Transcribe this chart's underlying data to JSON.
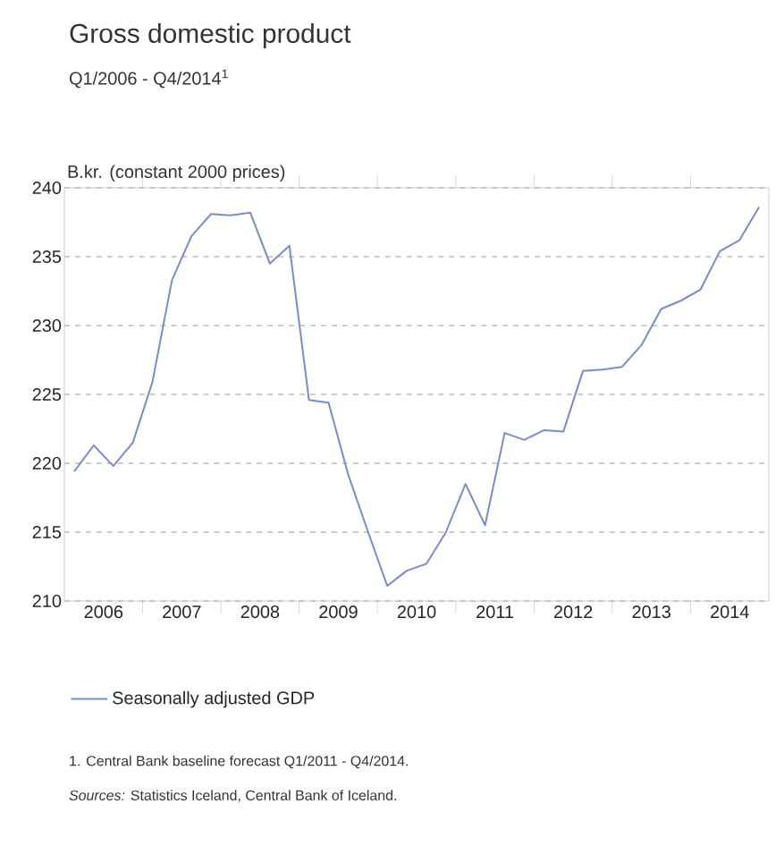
{
  "chart_data": {
    "type": "line",
    "title": "Gross domestic product",
    "subtitle": "Q1/2006 - Q4/2014$^{1}$",
    "ylabel": "B.kr. (constant 2000 prices)",
    "x": [
      2006.125,
      2006.375,
      2006.625,
      2006.875,
      2007.125,
      2007.375,
      2007.625,
      2007.875,
      2008.125,
      2008.375,
      2008.625,
      2008.875,
      2009.125,
      2009.375,
      2009.625,
      2009.875,
      2010.125,
      2010.375,
      2010.625,
      2010.875,
      2011.125,
      2011.375,
      2011.625,
      2011.875,
      2012.125,
      2012.375,
      2012.625,
      2012.875,
      2013.125,
      2013.375,
      2013.625,
      2013.875,
      2014.125,
      2014.375,
      2014.625,
      2014.875
    ],
    "series": [
      {
        "name": "Seasonally adjusted GDP",
        "color": "#7b8cc4",
        "values": [
          219.4,
          221.3,
          219.8,
          221.5,
          225.9,
          233.3,
          236.5,
          238.1,
          238.0,
          238.2,
          234.5,
          235.8,
          224.6,
          224.4,
          219.2,
          215.1,
          211.1,
          212.2,
          212.7,
          215.0,
          218.5,
          215.5,
          222.2,
          221.7,
          222.4,
          222.3,
          226.7,
          226.8,
          227.0,
          228.6,
          231.2,
          231.8,
          232.6,
          235.4,
          236.2,
          238.6
        ]
      }
    ],
    "xlim": [
      2006,
      2015
    ],
    "xticks": [
      {
        "value": 2006.5,
        "label": "2006"
      },
      {
        "value": 2007,
        "label": null
      },
      {
        "value": 2007.5,
        "label": "2007"
      },
      {
        "value": 2008,
        "label": null
      },
      {
        "value": 2008.5,
        "label": "2008"
      },
      {
        "value": 2009,
        "label": null
      },
      {
        "value": 2009.5,
        "label": "2009"
      },
      {
        "value": 2010,
        "label": null
      },
      {
        "value": 2010.5,
        "label": "2010"
      },
      {
        "value": 2011,
        "label": null
      },
      {
        "value": 2011.5,
        "label": "2011"
      },
      {
        "value": 2012,
        "label": null
      },
      {
        "value": 2012.5,
        "label": "2012"
      },
      {
        "value": 2013,
        "label": null
      },
      {
        "value": 2013.5,
        "label": "2013"
      },
      {
        "value": 2014,
        "label": null
      },
      {
        "value": 2014.5,
        "label": "2014"
      }
    ],
    "ylim": [
      210,
      240
    ],
    "yticks": [
      210,
      215,
      220,
      225,
      230,
      235,
      240
    ],
    "grid": "y",
    "legend": "bottom",
    "line_style": "solid",
    "marker": "none",
    "annotations": [
      "1. Central Bank baseline forecast Q1/2011 - Q4/2014.",
      "*Sources:* Statistics Iceland, Central Bank of Iceland."
    ]
  }
}
